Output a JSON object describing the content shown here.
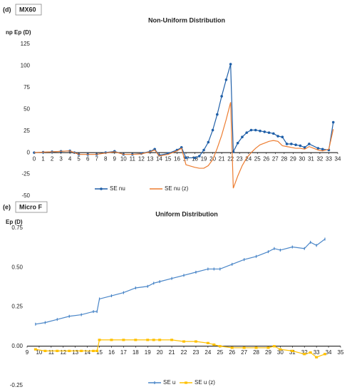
{
  "chart_data": [
    {
      "type": "line",
      "panel_label": "(d)",
      "label": "MX60",
      "title": "Non-Uniform Distribution",
      "y_label": "np Ep (D)",
      "x": [
        0,
        1,
        2,
        3,
        4,
        4.5,
        5,
        6,
        7,
        8,
        9,
        10,
        11,
        12,
        13,
        13.5,
        14,
        15,
        16,
        16.5,
        17,
        18,
        18.5,
        19,
        19.5,
        20,
        20.5,
        21,
        21.5,
        22,
        22.3,
        22.8,
        23.3,
        23.8,
        24.3,
        24.8,
        25.3,
        25.8,
        26.3,
        26.8,
        27.3,
        27.8,
        28.3,
        28.8,
        29.3,
        29.8,
        30.3,
        30.8,
        31.8,
        32.3,
        33,
        33.5
      ],
      "series": [
        {
          "name": "SE nu",
          "color": "#1f5fa8",
          "marker": "circle",
          "values": [
            0,
            0.5,
            1,
            1.5,
            2,
            0,
            -2,
            -2,
            -2,
            0,
            1.5,
            -2,
            -2,
            -1,
            1.5,
            4,
            -3,
            -1,
            3,
            6,
            -6,
            -6,
            -4,
            3,
            12,
            26,
            44,
            65,
            84,
            102,
            1,
            11,
            18,
            23,
            26,
            26,
            25,
            24,
            23,
            22,
            19,
            18,
            10,
            10,
            9,
            8,
            6,
            10,
            5,
            4,
            3,
            35
          ]
        },
        {
          "name": "SE nu (z)",
          "color": "#ed7d31",
          "marker": "none",
          "values": [
            0,
            0.5,
            1,
            1.5,
            2,
            0,
            -2,
            -2,
            -2,
            -0.5,
            1,
            -2,
            -2,
            -1.5,
            1,
            3,
            -4,
            -2,
            2,
            5,
            -14,
            -17,
            -18,
            -18,
            -15,
            -8,
            5,
            20,
            38,
            58,
            -41,
            -27,
            -15,
            -6,
            0,
            5,
            9,
            11,
            13,
            14,
            13,
            8,
            7,
            6,
            5,
            5,
            4,
            7,
            3,
            2,
            4,
            27
          ]
        }
      ],
      "xlim": [
        0,
        34
      ],
      "xticks": [
        0,
        1,
        2,
        3,
        4,
        5,
        6,
        7,
        8,
        9,
        10,
        11,
        12,
        13,
        14,
        15,
        16,
        17,
        18,
        19,
        20,
        21,
        22,
        23,
        24,
        25,
        26,
        27,
        28,
        29,
        30,
        31,
        32,
        33,
        34
      ],
      "ylim": [
        -50,
        125
      ],
      "yticks": [
        125,
        100,
        75,
        50,
        25,
        0,
        -25,
        -50
      ],
      "grid": false,
      "legend": "bottom"
    },
    {
      "type": "line",
      "panel_label": "(e)",
      "label": "Micro F",
      "title": "Uniform Distribution",
      "y_label": "Ep (D)",
      "x": [
        9.7,
        10.5,
        11.5,
        12.5,
        13.5,
        14.5,
        14.8,
        15,
        16,
        17,
        18,
        19,
        19.5,
        20,
        21,
        22,
        23,
        24,
        24.5,
        25,
        26,
        27,
        28,
        29,
        29.5,
        30,
        31,
        32,
        32.5,
        33,
        33.7
      ],
      "series": [
        {
          "name": "SE u",
          "color": "#4a86c8",
          "marker": "dash",
          "values": [
            0.14,
            0.15,
            0.17,
            0.19,
            0.2,
            0.22,
            0.22,
            0.3,
            0.32,
            0.34,
            0.37,
            0.38,
            0.4,
            0.41,
            0.43,
            0.45,
            0.47,
            0.49,
            0.49,
            0.49,
            0.52,
            0.55,
            0.57,
            0.6,
            0.62,
            0.61,
            0.63,
            0.62,
            0.66,
            0.64,
            0.68
          ]
        },
        {
          "name": "SE u (z)",
          "color": "#ffc000",
          "marker": "square",
          "values": [
            -0.02,
            -0.03,
            -0.03,
            -0.03,
            -0.03,
            -0.03,
            -0.03,
            0.04,
            0.04,
            0.04,
            0.04,
            0.04,
            0.04,
            0.04,
            0.04,
            0.03,
            0.03,
            0.02,
            0.01,
            0,
            -0.01,
            -0.01,
            -0.01,
            -0.01,
            0,
            -0.02,
            -0.03,
            -0.05,
            -0.04,
            -0.07,
            -0.05
          ]
        }
      ],
      "xlim": [
        9,
        35
      ],
      "xticks": [
        9,
        10,
        11,
        12,
        13,
        14,
        15,
        16,
        17,
        18,
        19,
        20,
        21,
        22,
        23,
        24,
        25,
        26,
        27,
        28,
        29,
        30,
        31,
        32,
        33,
        34,
        35
      ],
      "ylim": [
        -0.25,
        0.75
      ],
      "yticks": [
        {
          "value": 0.75,
          "label": "0.75"
        },
        {
          "value": 0.5,
          "label": "0.50"
        },
        {
          "value": 0.25,
          "label": "0.25"
        },
        {
          "value": 0,
          "label": "0.00"
        },
        {
          "value": -0.25,
          "label": "-0.25"
        }
      ],
      "grid": false,
      "legend": "bottom"
    }
  ]
}
